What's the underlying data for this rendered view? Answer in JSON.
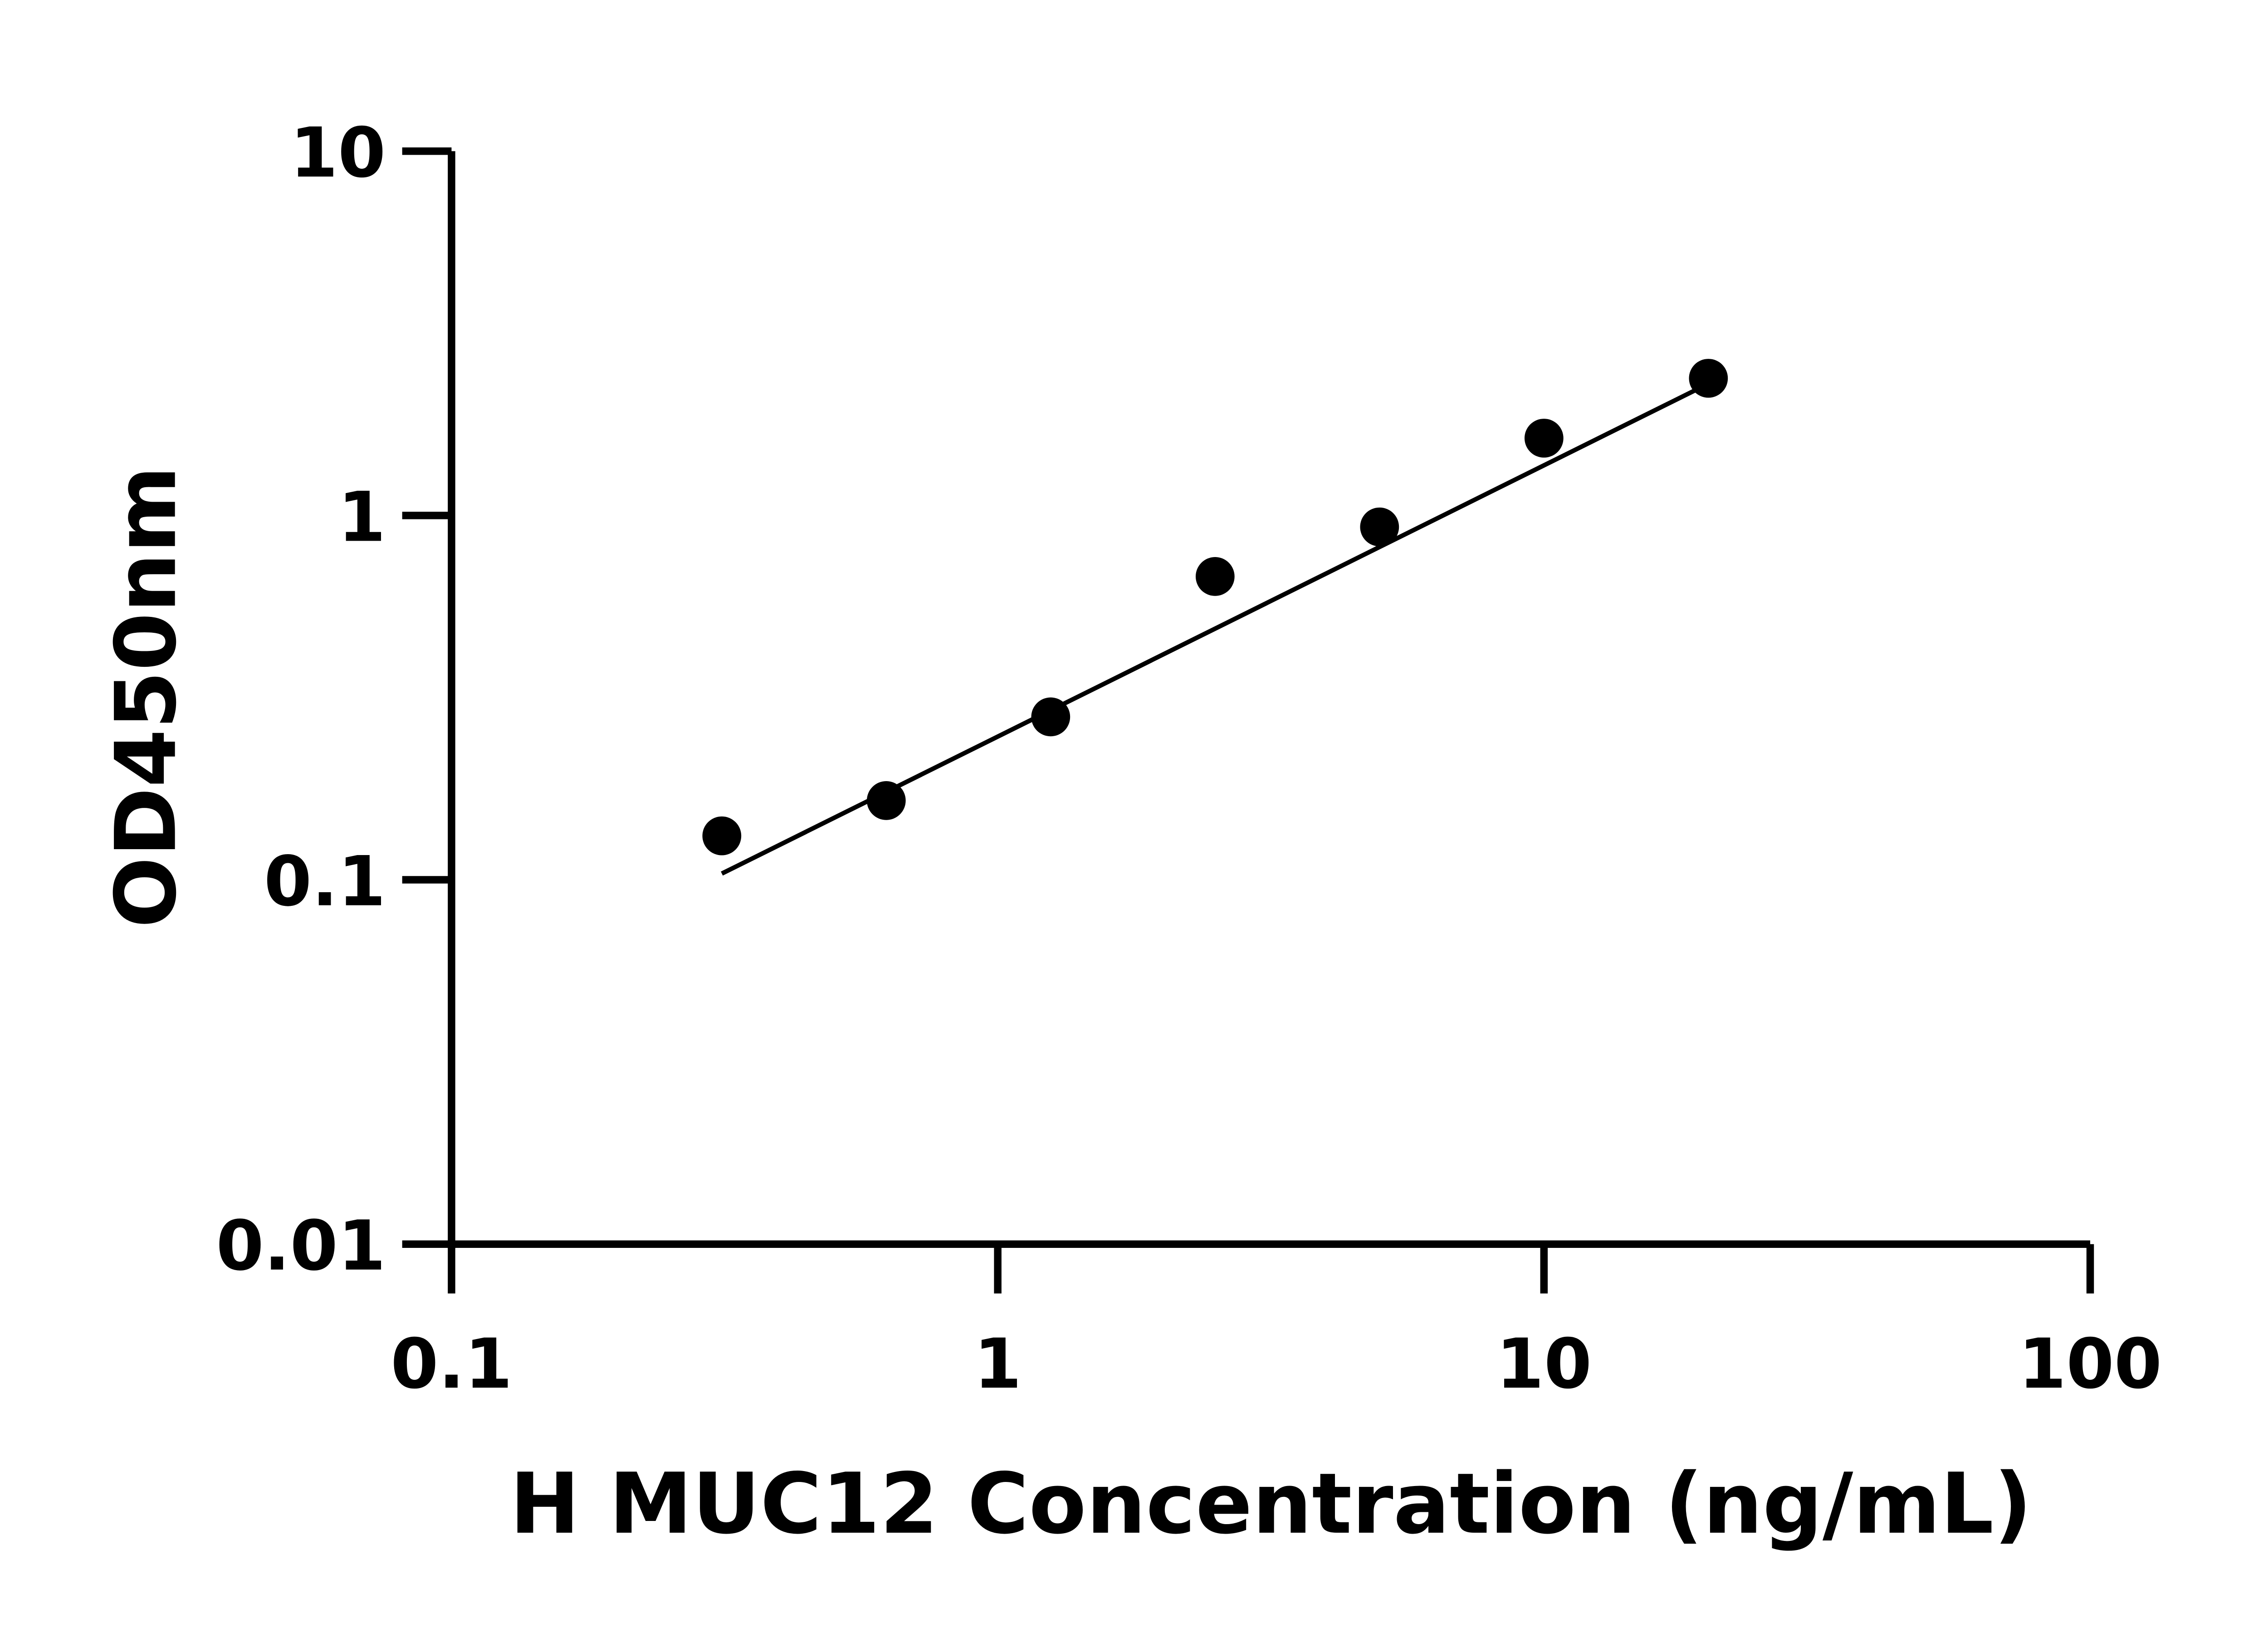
{
  "chart_data": {
    "type": "scatter",
    "title": "",
    "xlabel": "H MUC12 Concentration (ng/mL)",
    "ylabel": "OD450nm",
    "x_scale": "log",
    "y_scale": "log",
    "xlim": [
      0.1,
      100
    ],
    "ylim": [
      0.01,
      10
    ],
    "x_ticks": [
      0.1,
      1,
      10,
      100
    ],
    "x_tick_labels": [
      "0.1",
      "1",
      "10",
      "100"
    ],
    "y_ticks": [
      0.01,
      0.1,
      1,
      10
    ],
    "y_tick_labels": [
      "0.01",
      "0.1",
      "1",
      "10"
    ],
    "grid": false,
    "series": [
      {
        "x": [
          0.3125,
          0.625,
          1.25,
          2.5,
          5,
          10,
          20
        ],
        "y": [
          0.132,
          0.165,
          0.28,
          0.68,
          0.93,
          1.63,
          2.38
        ]
      }
    ],
    "fit_line": {
      "x": [
        0.3125,
        20
      ],
      "y": [
        0.104,
        2.3
      ]
    },
    "colors": {
      "marker": "#000000",
      "line": "#000000"
    }
  }
}
